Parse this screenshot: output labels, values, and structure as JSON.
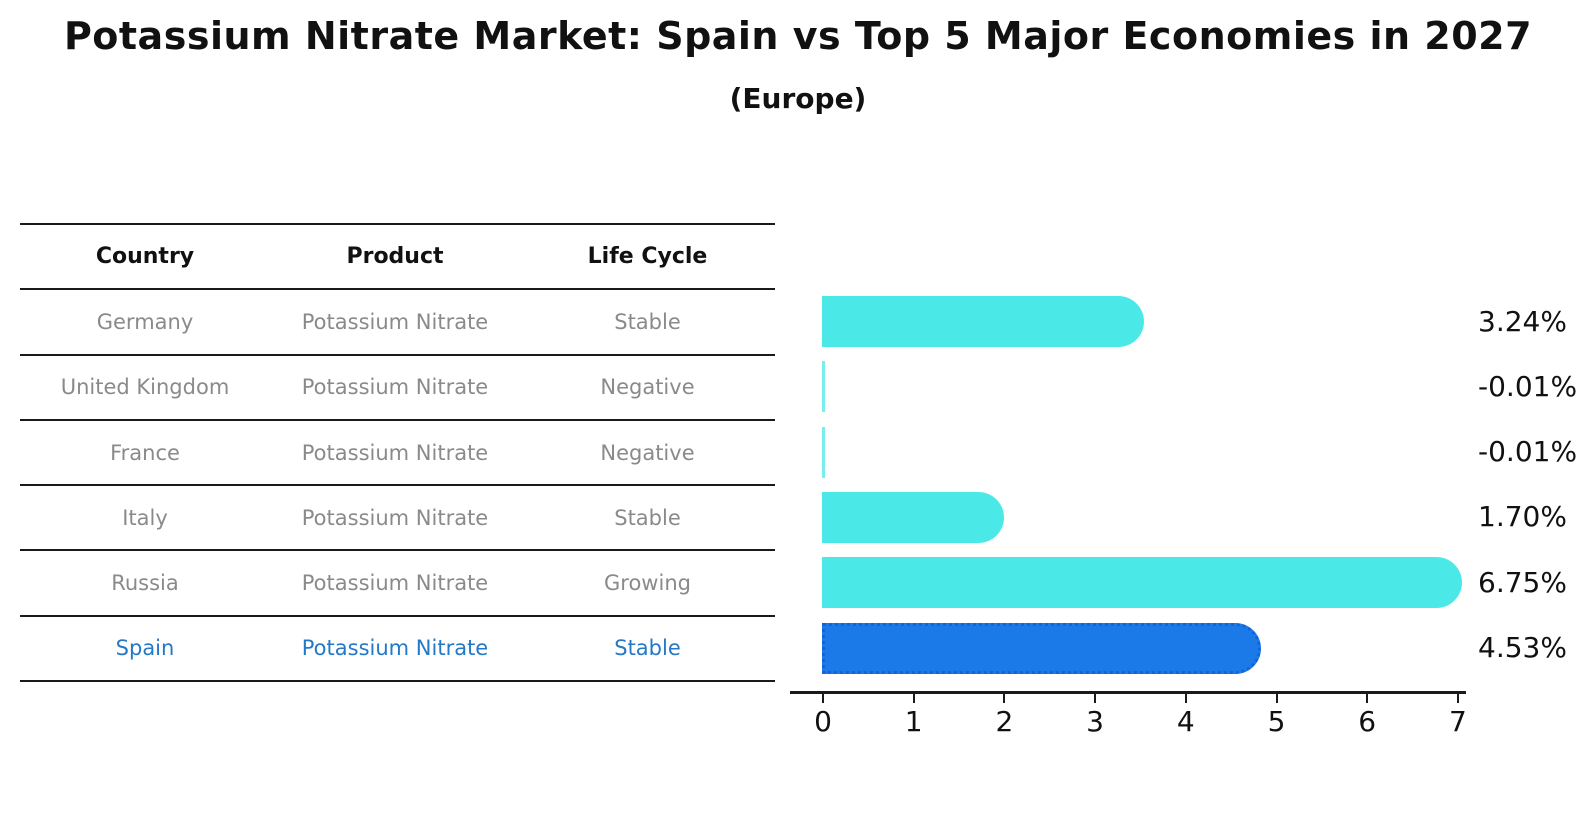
{
  "title": "Potassium Nitrate Market: Spain vs Top 5 Major Economies in 2027",
  "subtitle": "(Europe)",
  "table": {
    "headers": [
      "Country",
      "Product",
      "Life Cycle"
    ],
    "rows": [
      {
        "country": "Germany",
        "product": "Potassium Nitrate",
        "life_cycle": "Stable",
        "highlight": false
      },
      {
        "country": "United Kingdom",
        "product": "Potassium Nitrate",
        "life_cycle": "Negative",
        "highlight": false
      },
      {
        "country": "France",
        "product": "Potassium Nitrate",
        "life_cycle": "Negative",
        "highlight": false
      },
      {
        "country": "Italy",
        "product": "Potassium Nitrate",
        "life_cycle": "Stable",
        "highlight": false
      },
      {
        "country": "Russia",
        "product": "Potassium Nitrate",
        "life_cycle": "Growing",
        "highlight": false
      },
      {
        "country": "Spain",
        "product": "Potassium Nitrate",
        "life_cycle": "Stable",
        "highlight": true
      }
    ]
  },
  "chart_data": {
    "type": "bar",
    "orientation": "horizontal",
    "title": "Potassium Nitrate Market: Spain vs Top 5 Major Economies in 2027 (Europe)",
    "categories": [
      "Germany",
      "United Kingdom",
      "France",
      "Italy",
      "Russia",
      "Spain"
    ],
    "values": [
      3.24,
      -0.01,
      -0.01,
      1.7,
      6.75,
      4.53
    ],
    "value_labels": [
      "3.24%",
      "-0.01%",
      "-0.01%",
      "1.70%",
      "6.75%",
      "4.53%"
    ],
    "xlim": [
      0,
      7
    ],
    "xticks": [
      "0",
      "1",
      "2",
      "3",
      "4",
      "5",
      "6",
      "7"
    ],
    "highlight_index": 5,
    "grid": false,
    "legend": "none"
  },
  "colors": {
    "bar": "#4BE8E8",
    "highlight_bar": "#1B7AE8",
    "highlight_border": "#1563D6",
    "row_text": "#8a8a8a",
    "highlight_text": "#2478C8",
    "line": "#1a1a1a",
    "label_text": "#111111"
  }
}
